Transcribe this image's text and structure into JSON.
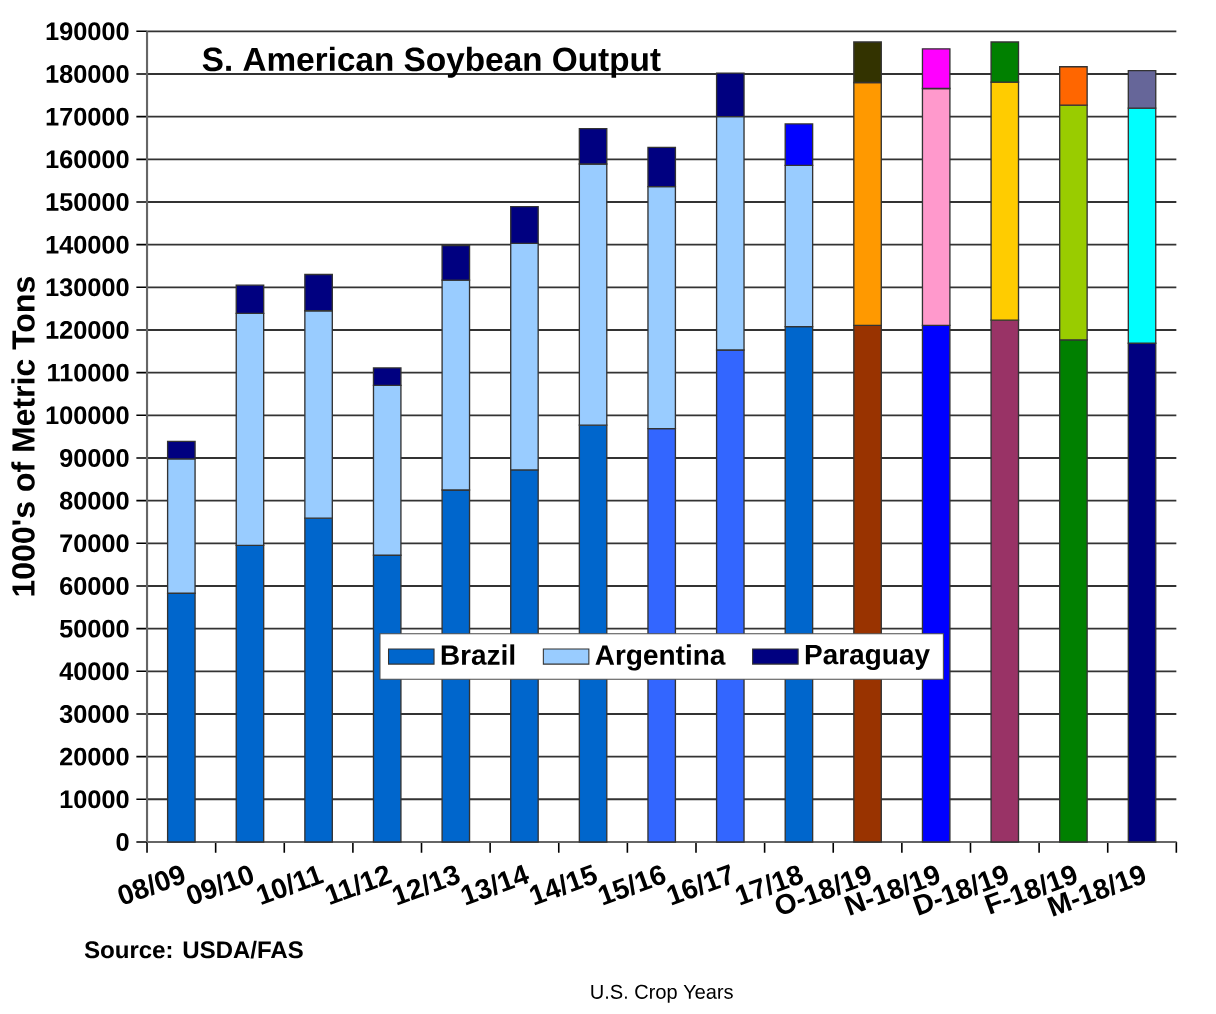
{
  "chart_data": {
    "type": "bar",
    "stacked": true,
    "title": "S. American Soybean Output",
    "xlabel": "U.S. Crop Years",
    "ylabel": "1000's of Metric Tons",
    "annotations": [
      "Source: USDA/FAS"
    ],
    "categories": [
      "08/09",
      "09/10",
      "10/11",
      "11/12",
      "12/13",
      "13/14",
      "14/15",
      "15/16",
      "16/17",
      "17/18",
      "O-18/19",
      "N-18/19",
      "D-18/19",
      "F-18/19",
      "M-18/19"
    ],
    "series": [
      {
        "name": "Brazil",
        "color": "#0066cc",
        "values": [
          58300,
          69500,
          75900,
          67200,
          82500,
          87200,
          97700,
          96900,
          115300,
          120800,
          121100,
          121100,
          122300,
          117700,
          116900
        ],
        "colors": [
          "#0066cc",
          "#0066cc",
          "#0066cc",
          "#0066cc",
          "#0066cc",
          "#0066cc",
          "#0066cc",
          "#3366ff",
          "#3366ff",
          "#0066cc",
          "#993300",
          "#0000ff",
          "#993366",
          "#008000",
          "#000080"
        ]
      },
      {
        "name": "Argentina",
        "color": "#99ccff",
        "values": [
          31500,
          54400,
          48600,
          39800,
          49200,
          53100,
          61200,
          56700,
          54700,
          37800,
          56900,
          55500,
          55800,
          55000,
          55100
        ],
        "colors": [
          "#99ccff",
          "#99ccff",
          "#99ccff",
          "#99ccff",
          "#99ccff",
          "#99ccff",
          "#99ccff",
          "#99ccff",
          "#99ccff",
          "#99ccff",
          "#ff9900",
          "#ff99cc",
          "#ffcc00",
          "#99cc00",
          "#00ffff"
        ]
      },
      {
        "name": "Paraguay",
        "color": "#000080",
        "values": [
          4100,
          6600,
          8500,
          4100,
          8100,
          8600,
          8300,
          9200,
          10200,
          9700,
          9500,
          9300,
          9400,
          9000,
          8800
        ],
        "colors": [
          "#000080",
          "#000080",
          "#000080",
          "#000080",
          "#000080",
          "#000080",
          "#000080",
          "#000080",
          "#000080",
          "#0000ff",
          "#333300",
          "#ff00ff",
          "#008000",
          "#ff6600",
          "#666699"
        ]
      }
    ],
    "ylim": [
      0,
      190000
    ],
    "yticks": [
      0,
      10000,
      20000,
      30000,
      40000,
      50000,
      60000,
      70000,
      80000,
      90000,
      100000,
      110000,
      120000,
      130000,
      140000,
      150000,
      160000,
      170000,
      180000,
      190000
    ],
    "grid": "y",
    "legend": "bottom"
  }
}
